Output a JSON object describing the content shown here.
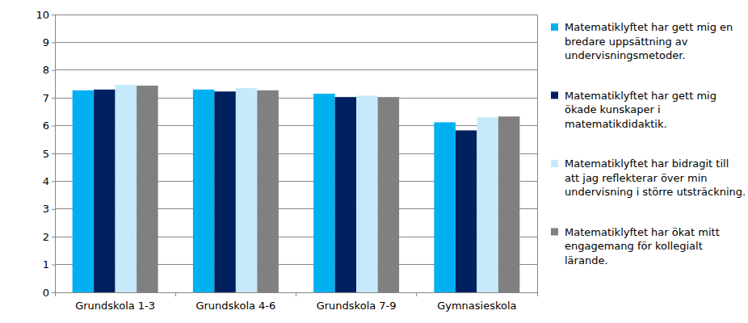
{
  "chart_data": {
    "type": "bar",
    "categories": [
      "Grundskola 1-3",
      "Grundskola 4-6",
      "Grundskola 7-9",
      "Gymnasieskola"
    ],
    "series": [
      {
        "name": "Matematiklyftet har gett mig en bredare uppsättning av undervisningsmetoder.",
        "color": "#00b0f0",
        "values": [
          7.27,
          7.3,
          7.15,
          6.12
        ]
      },
      {
        "name": "Matematiklyftet har gett mig ökade kunskaper i matematikdidaktik.",
        "color": "#002060",
        "values": [
          7.3,
          7.23,
          7.03,
          5.83
        ]
      },
      {
        "name": "Matematiklyftet har bidragit till att jag reflekterar över min undervisning i större utsträckning.",
        "color": "#c6eafb",
        "values": [
          7.47,
          7.35,
          7.08,
          6.3
        ]
      },
      {
        "name": "Matematiklyftet har ökat mitt engagemang för kollegialt lärande.",
        "color": "#808080",
        "values": [
          7.44,
          7.27,
          7.03,
          6.33
        ]
      }
    ],
    "ylim": [
      0,
      10
    ],
    "yticks": [
      0,
      1,
      2,
      3,
      4,
      5,
      6,
      7,
      8,
      9,
      10
    ],
    "grid": true,
    "legend": "right"
  }
}
